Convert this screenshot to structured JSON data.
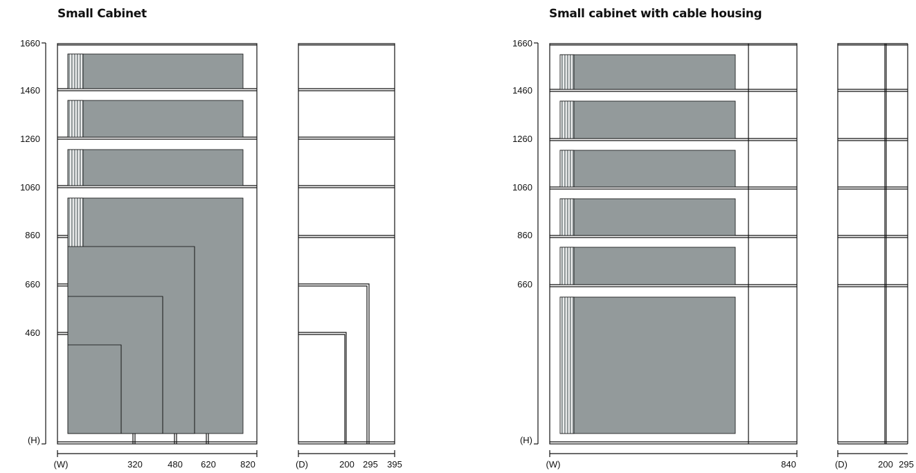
{
  "left_panel": {
    "title": "Small Cabinet",
    "height_ticks": [
      "1660",
      "1460",
      "1260",
      "1060",
      "860",
      "660",
      "460",
      "(H)"
    ],
    "width_ticks": [
      "(W)",
      "320",
      "480",
      "620",
      "820"
    ],
    "depth_ticks": [
      "(D)",
      "200",
      "295",
      "395"
    ]
  },
  "right_panel": {
    "title": "Small cabinet with cable housing",
    "height_ticks": [
      "1660",
      "1460",
      "1260",
      "1060",
      "860",
      "660",
      "(H)"
    ],
    "width_ticks": [
      "(W)",
      "840"
    ],
    "depth_ticks": [
      "(D)",
      "200",
      "295"
    ]
  },
  "colors": {
    "screen_fill": "#939a9b",
    "line": "#111111",
    "stripe": "#ffffff"
  }
}
